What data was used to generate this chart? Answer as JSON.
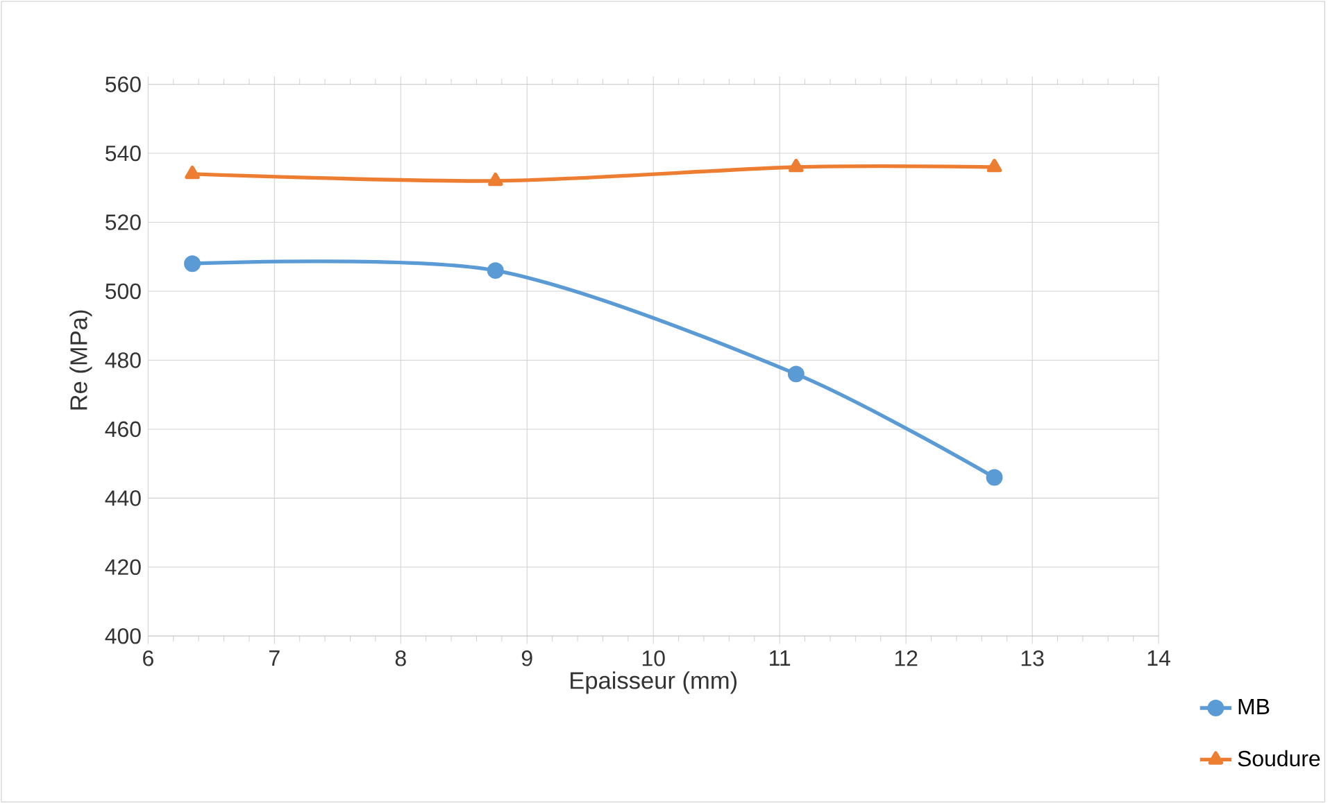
{
  "chart_data": {
    "type": "line",
    "xlabel": "Epaisseur (mm)",
    "ylabel": "Re (MPa)",
    "xlim": [
      6,
      14
    ],
    "ylim": [
      400,
      560
    ],
    "xticks": [
      6,
      7,
      8,
      9,
      10,
      11,
      12,
      13,
      14
    ],
    "yticks": [
      400,
      420,
      440,
      460,
      480,
      500,
      520,
      540,
      560
    ],
    "grid": true,
    "legend": "bottom right",
    "line_style": "solid",
    "series": [
      {
        "name": "MB",
        "color": "#5b9bd5",
        "marker": "circle",
        "x": [
          6.35,
          8.75,
          11.13,
          12.7
        ],
        "values": [
          508,
          506,
          476,
          446
        ]
      },
      {
        "name": "Soudure",
        "color": "#ed7d31",
        "marker": "triangle",
        "x": [
          6.35,
          8.75,
          11.13,
          12.7
        ],
        "values": [
          534,
          532,
          536,
          536
        ]
      }
    ]
  }
}
